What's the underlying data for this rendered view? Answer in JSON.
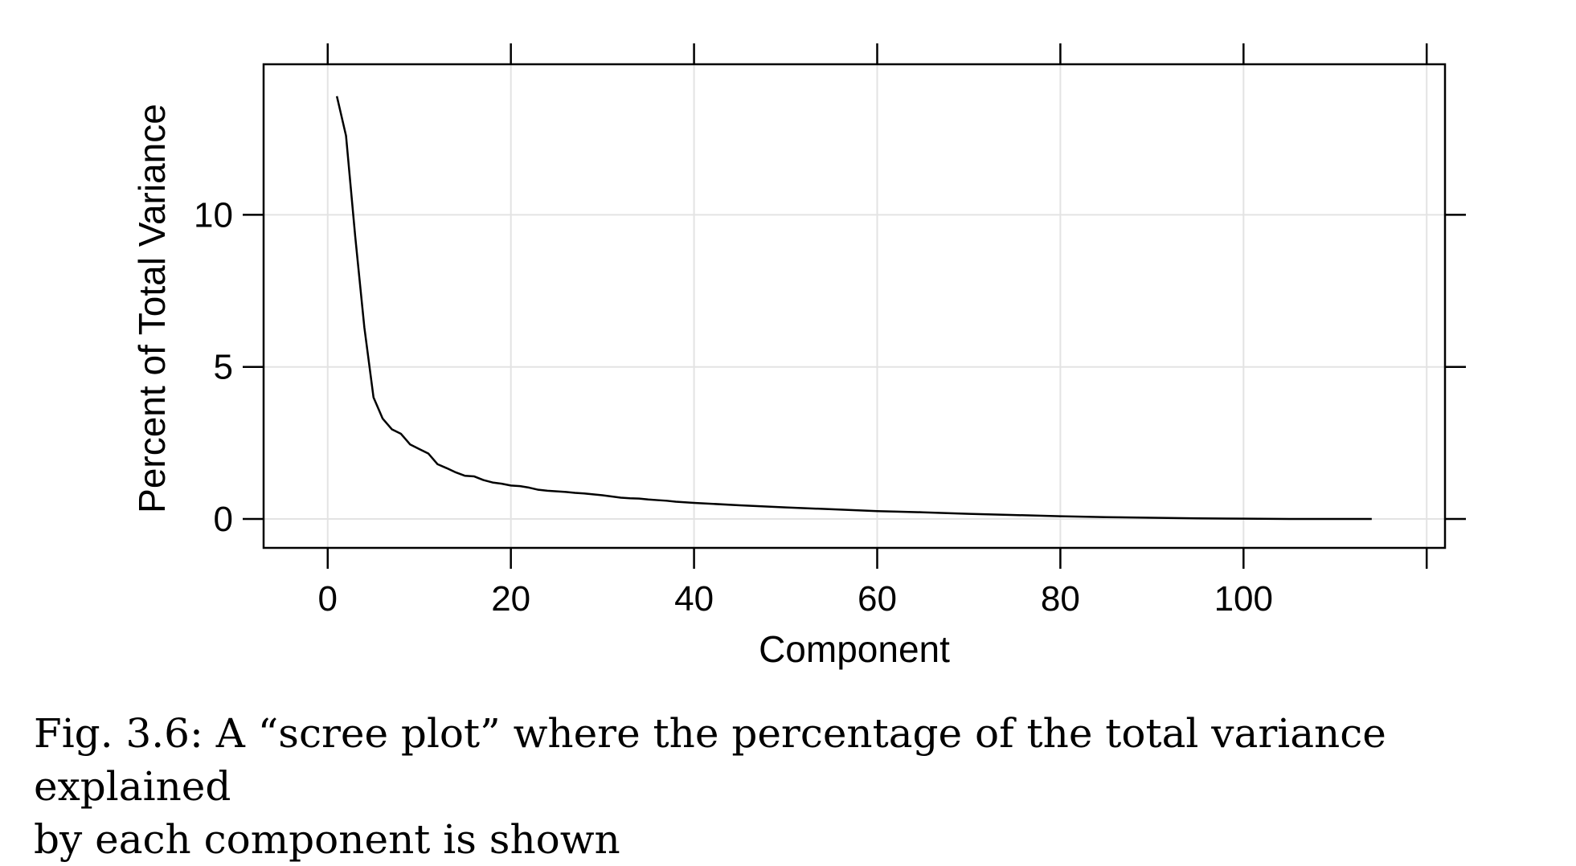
{
  "chart_data": {
    "type": "line",
    "xlabel": "Component",
    "ylabel": "Percent of Total Variance",
    "xlim": [
      -7,
      122
    ],
    "ylim": [
      -0.95,
      14.95
    ],
    "x_ticks": [
      0,
      20,
      40,
      60,
      80,
      100,
      120
    ],
    "x_tick_labels": [
      "0",
      "20",
      "40",
      "60",
      "80",
      "100",
      ""
    ],
    "y_ticks": [
      0,
      5,
      10
    ],
    "y_tick_labels": [
      "0",
      "5",
      "10"
    ],
    "grid": true,
    "line_color": "#000000",
    "grid_color": "#e3e3e3",
    "series": [
      {
        "x": [
          1,
          2,
          3,
          4,
          5,
          6,
          7,
          8,
          9,
          10,
          11,
          12,
          13,
          14,
          15,
          16,
          17,
          18,
          19,
          20,
          21,
          22,
          23,
          24,
          25,
          26,
          27,
          28,
          29,
          30,
          31,
          32,
          33,
          34,
          35,
          36,
          37,
          38,
          39,
          40,
          45,
          50,
          55,
          60,
          65,
          70,
          75,
          80,
          85,
          90,
          95,
          100,
          105,
          110,
          114
        ],
        "y": [
          13.9,
          12.6,
          9.3,
          6.3,
          4.0,
          3.3,
          2.95,
          2.8,
          2.45,
          2.3,
          2.15,
          1.8,
          1.67,
          1.53,
          1.42,
          1.4,
          1.28,
          1.2,
          1.16,
          1.1,
          1.08,
          1.03,
          0.96,
          0.93,
          0.91,
          0.89,
          0.86,
          0.84,
          0.81,
          0.78,
          0.74,
          0.7,
          0.68,
          0.67,
          0.64,
          0.62,
          0.6,
          0.57,
          0.55,
          0.53,
          0.45,
          0.38,
          0.32,
          0.26,
          0.22,
          0.17,
          0.13,
          0.09,
          0.06,
          0.04,
          0.02,
          0.01,
          0.0,
          0.0,
          0.0
        ]
      }
    ]
  },
  "caption": {
    "line1": "Fig. 3.6: A “scree plot” where the percentage of the total variance explained",
    "line2": "by each component is shown"
  }
}
